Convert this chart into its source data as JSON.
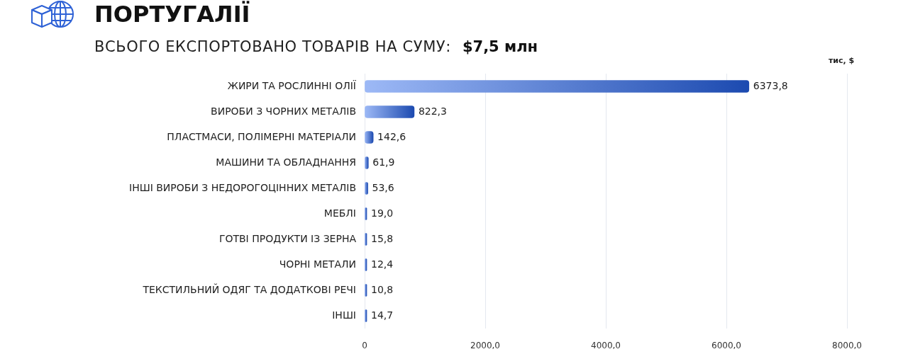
{
  "chart_data": {
    "type": "bar",
    "orientation": "horizontal",
    "title": "ПОРТУГАЛІЇ",
    "subtitle": "ВСЬОГО ЕКСПОРТОВАНО ТОВАРІВ НА СУМУ:",
    "annotations": [
      "$7,5 млн"
    ],
    "xlabel": "тис, $",
    "categories": [
      "ЖИРИ ТА РОСЛИННІ ОЛІЇ",
      "ВИРОБИ З ЧОРНИХ МЕТАЛІВ",
      "ПЛАСТМАСИ, ПОЛІМЕРНІ МАТЕРІАЛИ",
      "МАШИНИ ТА ОБЛАДНАННЯ",
      "ІНШІ ВИРОБИ З НЕДОРОГОЦІННИХ МЕТАЛІВ",
      "МЕБЛІ",
      "ГОТВІ ПРОДУКТИ ІЗ ЗЕРНА",
      "ЧОРНІ МЕТАЛИ",
      "ТЕКСТИЛЬНИЙ ОДЯГ ТА ДОДАТКОВІ РЕЧІ",
      "ІНШІ"
    ],
    "values": [
      6373.8,
      822.3,
      142.6,
      61.9,
      53.6,
      19.0,
      15.8,
      12.4,
      10.8,
      14.7
    ],
    "color": "#2563eb",
    "value_labels": [
      "6373,8",
      "822,3",
      "142,6",
      "61,9",
      "53,6",
      "19,0",
      "15,8",
      "12,4",
      "10,8",
      "14,7"
    ],
    "xlim": [
      0,
      8000
    ],
    "xticks": [
      0,
      {
        "value": 2000,
        "label": "2000,0"
      },
      {
        "value": 4000,
        "label": "4000,0"
      },
      {
        "value": 6000,
        "label": "6000,0"
      },
      {
        "value": 8000,
        "label": "8000,0"
      }
    ],
    "grid": "x"
  }
}
